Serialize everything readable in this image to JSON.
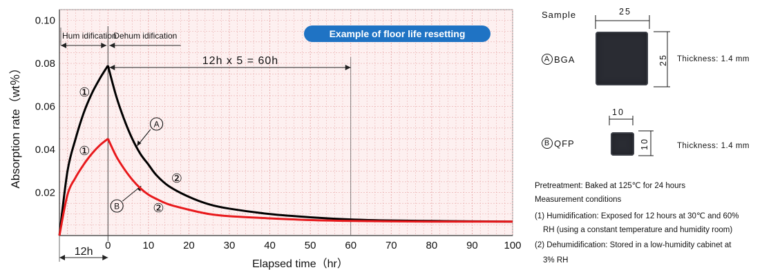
{
  "chart_data": {
    "type": "line",
    "ylabel": "Absorption rate（wt％）",
    "xlabel": "Elapsed time（hr）",
    "xlim": [
      -12,
      100
    ],
    "ylim": [
      0,
      0.105
    ],
    "x_ticks": [
      "0",
      "10",
      "20",
      "30",
      "40",
      "50",
      "60",
      "70",
      "80",
      "90",
      "100"
    ],
    "y_ticks": [
      "0.02",
      "0.04",
      "0.06",
      "0.08",
      "0.10"
    ],
    "grid": true,
    "series": [
      {
        "name": "A",
        "color": "#000000",
        "x": [
          -12,
          -10,
          -8,
          -6,
          -4,
          -2,
          0,
          2,
          4,
          6,
          8,
          10,
          12,
          15,
          20,
          25,
          30,
          40,
          50,
          60,
          70,
          80,
          90,
          100
        ],
        "y": [
          0.0,
          0.03,
          0.045,
          0.057,
          0.066,
          0.073,
          0.079,
          0.065,
          0.054,
          0.045,
          0.038,
          0.033,
          0.028,
          0.023,
          0.018,
          0.0145,
          0.0125,
          0.01,
          0.0085,
          0.0075,
          0.007,
          0.0068,
          0.0066,
          0.0065
        ]
      },
      {
        "name": "B",
        "color": "#e8191c",
        "x": [
          -12,
          -10,
          -8,
          -6,
          -4,
          -2,
          0,
          2,
          4,
          6,
          8,
          10,
          12,
          15,
          20,
          25,
          30,
          40,
          50,
          60,
          70,
          80,
          90,
          100
        ],
        "y": [
          0.0,
          0.019,
          0.027,
          0.033,
          0.038,
          0.042,
          0.045,
          0.037,
          0.031,
          0.026,
          0.022,
          0.019,
          0.017,
          0.0145,
          0.012,
          0.01,
          0.009,
          0.008,
          0.0072,
          0.0068,
          0.0066,
          0.0065,
          0.0065,
          0.0065
        ]
      }
    ],
    "annotations": {
      "humidification": "Hum idification",
      "dehumidification": "Dehum idification",
      "span": "12h x 5 = 60h",
      "pre": "12h",
      "banner": "Example of floor life resetting",
      "circle_1": "①",
      "circle_2": "②",
      "label_a": "A",
      "label_b": "B"
    }
  },
  "sample_panel": {
    "title": "Sample",
    "bga_label": "BGA",
    "bga_circle": "A",
    "bga_width": "25",
    "bga_height": "25",
    "bga_thickness": "Thickness: 1.4 mm",
    "qfp_label": "QFP",
    "qfp_circle": "B",
    "qfp_width": "10",
    "qfp_height": "10",
    "qfp_thickness": "Thickness: 1.4 mm",
    "chip_color": "#2a2c33"
  },
  "notes": {
    "pretreatment": "Pretreatment: Baked at 125℃ for 24 hours",
    "conditions_title": "Measurement conditions",
    "cond1_line1": "(1) Humidification: Exposed for 12 hours at 30℃ and 60%",
    "cond1_line2": "RH (using a constant temperature and humidity room)",
    "cond2_line1": "(2) Dehumidification: Stored in a low-humidity cabinet at",
    "cond2_line2": "3% RH"
  },
  "colors": {
    "grid": "#e7a6a6",
    "plot_bg": "#fdf0f0",
    "banner": "#1f73c4",
    "curve_a": "#000000",
    "curve_b": "#e8191c"
  }
}
